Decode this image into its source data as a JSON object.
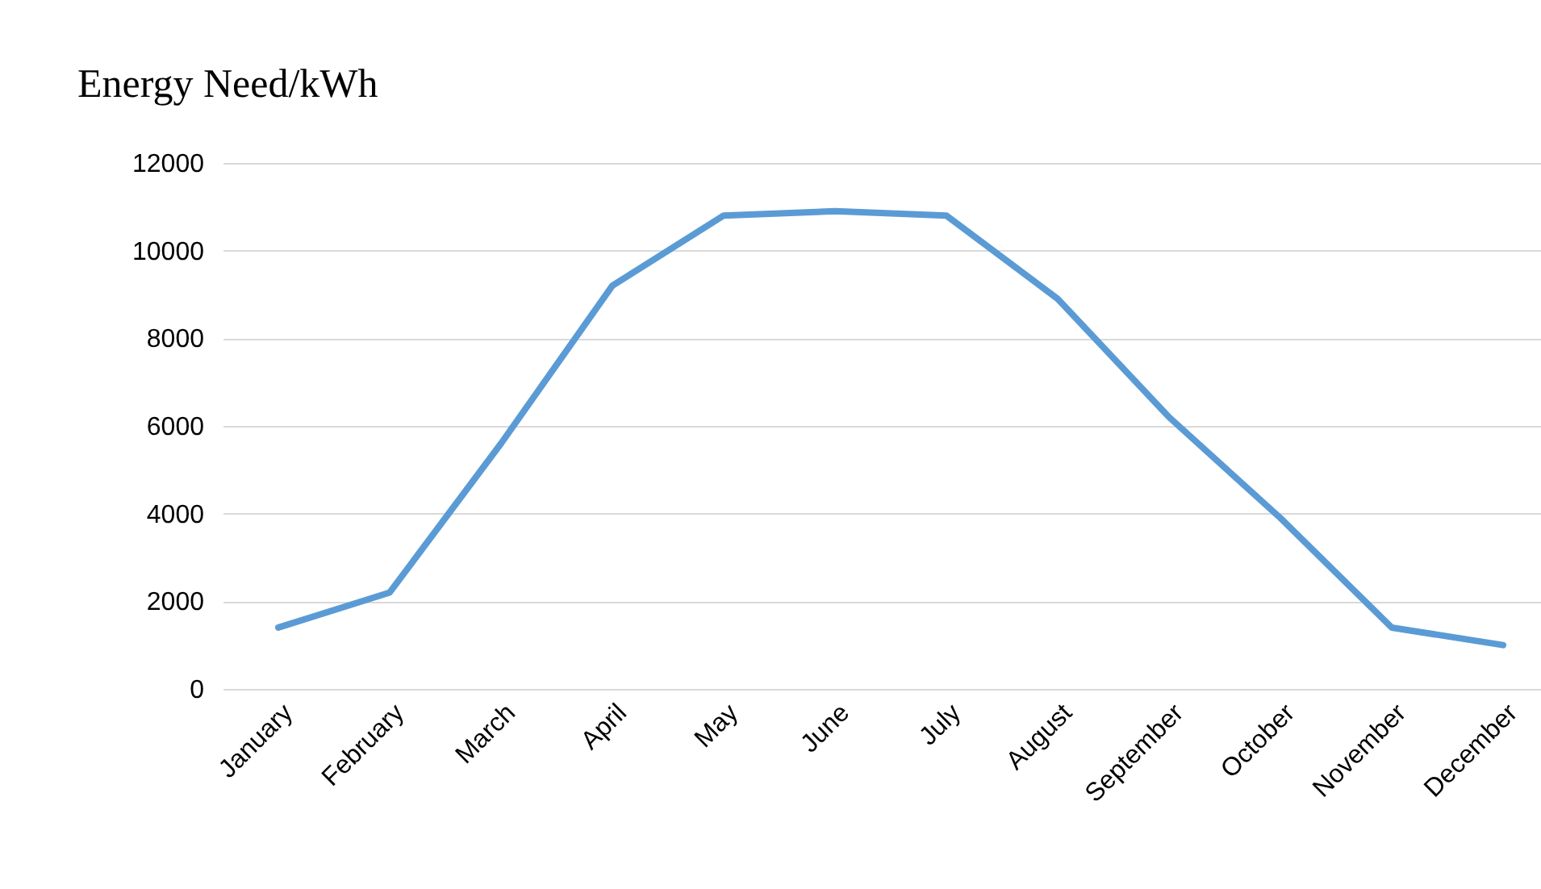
{
  "chart_data": {
    "type": "line",
    "title": "Energy Need/kWh",
    "categories": [
      "January",
      "February",
      "March",
      "April",
      "May",
      "June",
      "July",
      "August",
      "September",
      "October",
      "November",
      "December"
    ],
    "series": [
      {
        "color": "#5b9bd5",
        "values": [
          1400,
          2200,
          5600,
          9200,
          10800,
          10900,
          10800,
          8900,
          6200,
          3900,
          1400,
          1000
        ]
      }
    ],
    "ylim": [
      0,
      12000
    ],
    "yticks": [
      0,
      2000,
      4000,
      6000,
      8000,
      10000,
      12000
    ],
    "grid": "y",
    "legend": false,
    "marker": "none",
    "line_style": "solid"
  }
}
